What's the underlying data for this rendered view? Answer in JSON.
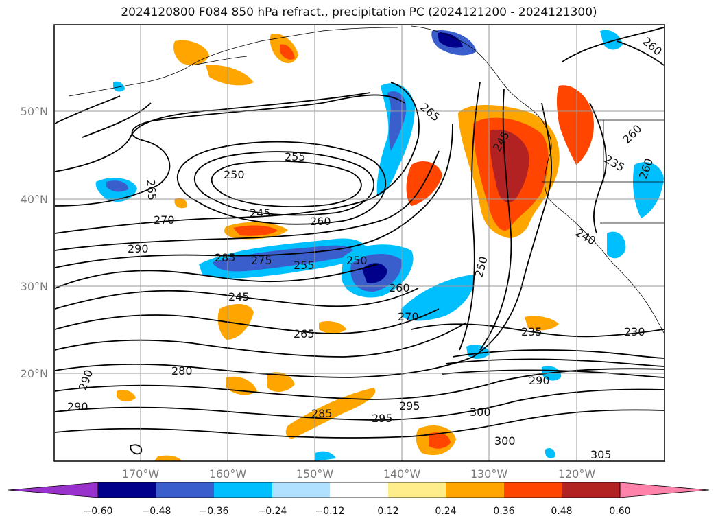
{
  "title": "2024120800 F084 850 hPa refract., precipitation PC (2024121200 - 2024121300)",
  "lat_labels": [
    "50°N",
    "40°N",
    "30°N",
    "20°N"
  ],
  "lon_labels": [
    "170°W",
    "160°W",
    "150°W",
    "140°W",
    "130°W",
    "120°W"
  ],
  "colorbar": {
    "ticks": [
      "−0.60",
      "−0.48",
      "−0.36",
      "−0.24",
      "−0.12",
      "0.12",
      "0.24",
      "0.36",
      "0.48",
      "0.60"
    ],
    "colors": [
      "#9932cc",
      "#00008b",
      "#3a5fcd",
      "#00bfff",
      "#b0e2ff",
      "#ffffff",
      "#ffec8b",
      "#ffa500",
      "#ff4500",
      "#b22222",
      "#ff82ab"
    ]
  },
  "contour_labels": [
    "255",
    "250",
    "265",
    "245",
    "270",
    "260",
    "290",
    "285",
    "275",
    "255",
    "250",
    "245",
    "260",
    "270",
    "265",
    "280",
    "290",
    "290",
    "285",
    "295",
    "295",
    "300",
    "300",
    "305",
    "290",
    "235",
    "230",
    "250",
    "245",
    "265",
    "260",
    "235",
    "260",
    "240",
    "260"
  ],
  "colors": {
    "contour": "#000000",
    "grid": "#9a9a9a",
    "frame": "#000000"
  }
}
